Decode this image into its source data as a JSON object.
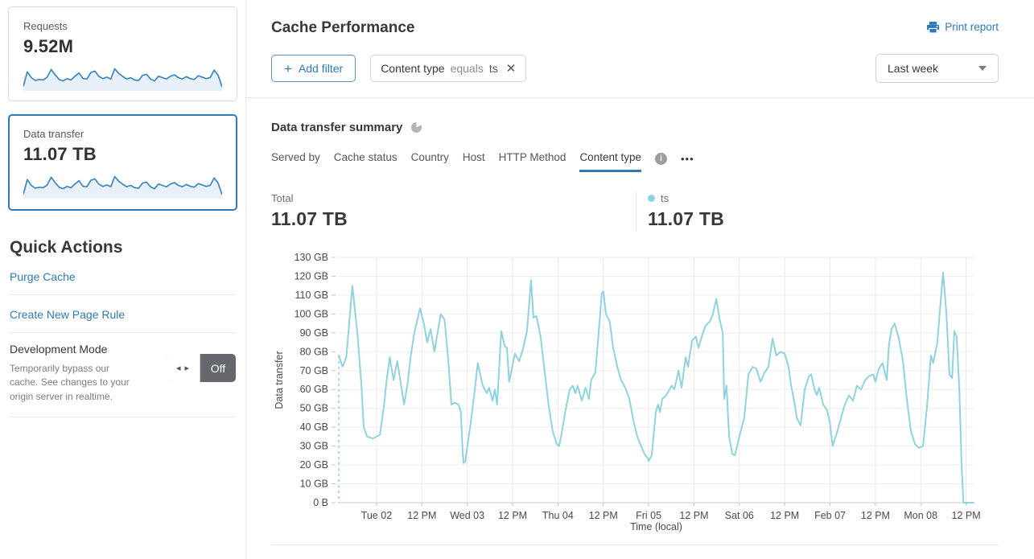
{
  "colors": {
    "accent_blue": "#2c7bb8",
    "selected_card_border": "#2f7bbf",
    "chart_line": "#8ed3df",
    "sparkline_stroke": "#3e87c2",
    "sparkline_fill": "#e8f1f9",
    "toggle_off_bg": "#65696e"
  },
  "icons": {
    "close_glyph": "✕",
    "plus_glyph": "+",
    "more_glyph": "•••",
    "toggle_arrows_glyph": "◂ ▸",
    "info_glyph": "i"
  },
  "sidebar": {
    "cards": [
      {
        "label": "Requests",
        "value": "9.52M",
        "sparkline": [
          12,
          75,
          50,
          38,
          42,
          40,
          52,
          85,
          62,
          42,
          36,
          46,
          40,
          56,
          70,
          46,
          44,
          72,
          78,
          55,
          46,
          52,
          44,
          88,
          68,
          55,
          44,
          50,
          40,
          38,
          60,
          64,
          44,
          36,
          56,
          50,
          44,
          56,
          62,
          50,
          44,
          54,
          46,
          42,
          58,
          52,
          46,
          50,
          82,
          60,
          10
        ]
      },
      {
        "label": "Data transfer",
        "value": "11.07 TB",
        "selected": true,
        "sparkline": [
          12,
          75,
          50,
          38,
          42,
          40,
          52,
          85,
          62,
          42,
          36,
          46,
          40,
          56,
          70,
          46,
          44,
          72,
          78,
          55,
          46,
          52,
          44,
          88,
          68,
          55,
          44,
          50,
          40,
          38,
          60,
          64,
          44,
          36,
          56,
          50,
          44,
          56,
          62,
          50,
          44,
          54,
          46,
          42,
          58,
          52,
          46,
          50,
          82,
          60,
          10
        ]
      }
    ],
    "quick_actions": {
      "title": "Quick Actions",
      "links": [
        "Purge Cache",
        "Create New Page Rule"
      ],
      "dev_mode": {
        "title": "Development Mode",
        "description": "Temporarily bypass our cache. See changes to your origin server in realtime.",
        "toggle_state": "Off"
      }
    }
  },
  "header": {
    "title": "Cache Performance",
    "print_label": "Print report",
    "add_filter_label": "Add filter",
    "filter_chip": {
      "field": "Content type",
      "operator": "equals",
      "value": "ts"
    },
    "time_range": "Last week"
  },
  "summary": {
    "title": "Data transfer summary",
    "tabs": [
      {
        "label": "Served by"
      },
      {
        "label": "Cache status"
      },
      {
        "label": "Country"
      },
      {
        "label": "Host"
      },
      {
        "label": "HTTP Method"
      },
      {
        "label": "Content type",
        "active": true
      }
    ],
    "total_label": "Total",
    "total_value": "11.07 TB",
    "series_label": "ts",
    "series_value": "11.07 TB"
  },
  "chart_data": {
    "type": "line",
    "title": "Data transfer summary",
    "xlabel": "Time (local)",
    "ylabel": "Data transfer",
    "xlim": [
      0,
      168
    ],
    "ylim": [
      0,
      130
    ],
    "grid": true,
    "legend_position": "top-right",
    "y_ticks": [
      {
        "value": 0,
        "label": "0 B"
      },
      {
        "value": 10,
        "label": "10 GB"
      },
      {
        "value": 20,
        "label": "20 GB"
      },
      {
        "value": 30,
        "label": "30 GB"
      },
      {
        "value": 40,
        "label": "40 GB"
      },
      {
        "value": 50,
        "label": "50 GB"
      },
      {
        "value": 60,
        "label": "60 GB"
      },
      {
        "value": 70,
        "label": "70 GB"
      },
      {
        "value": 80,
        "label": "80 GB"
      },
      {
        "value": 90,
        "label": "90 GB"
      },
      {
        "value": 100,
        "label": "100 GB"
      },
      {
        "value": 110,
        "label": "110 GB"
      },
      {
        "value": 120,
        "label": "120 GB"
      },
      {
        "value": 130,
        "label": "130 GB"
      }
    ],
    "x_ticks": [
      {
        "t": 10,
        "label": "Tue 02"
      },
      {
        "t": 22,
        "label": "12 PM"
      },
      {
        "t": 34,
        "label": "Wed 03"
      },
      {
        "t": 46,
        "label": "12 PM"
      },
      {
        "t": 58,
        "label": "Thu 04"
      },
      {
        "t": 70,
        "label": "12 PM"
      },
      {
        "t": 82,
        "label": "Fri 05"
      },
      {
        "t": 94,
        "label": "12 PM"
      },
      {
        "t": 106,
        "label": "Sat 06"
      },
      {
        "t": 118,
        "label": "12 PM"
      },
      {
        "t": 130,
        "label": "Feb 07"
      },
      {
        "t": 142,
        "label": "12 PM"
      },
      {
        "t": 154,
        "label": "Mon 08"
      },
      {
        "t": 166,
        "label": "12 PM"
      }
    ],
    "series": [
      {
        "name": "ts",
        "color": "#8ed3df",
        "unit": "GB",
        "start_boundary_dashed": true,
        "points": [
          [
            0,
            78
          ],
          [
            1,
            72
          ],
          [
            2,
            77
          ],
          [
            3.6,
            115
          ],
          [
            5,
            88
          ],
          [
            6,
            62
          ],
          [
            6.6,
            40
          ],
          [
            7.5,
            35
          ],
          [
            9,
            34
          ],
          [
            10.9,
            36
          ],
          [
            12,
            52
          ],
          [
            12.6,
            64
          ],
          [
            13.5,
            77
          ],
          [
            14.5,
            65
          ],
          [
            15.5,
            75
          ],
          [
            16.5,
            62
          ],
          [
            17.3,
            52
          ],
          [
            18.2,
            63
          ],
          [
            19,
            77
          ],
          [
            20,
            90
          ],
          [
            21.5,
            103
          ],
          [
            22.5,
            95
          ],
          [
            23.4,
            85
          ],
          [
            24.3,
            92
          ],
          [
            25.3,
            80
          ],
          [
            27,
            100
          ],
          [
            28,
            97
          ],
          [
            29,
            75
          ],
          [
            29.8,
            52
          ],
          [
            30.6,
            53
          ],
          [
            31.7,
            52
          ],
          [
            32.3,
            48
          ],
          [
            32.7,
            30
          ],
          [
            33,
            21
          ],
          [
            33.5,
            22
          ],
          [
            33.9,
            28
          ],
          [
            34.9,
            42
          ],
          [
            36,
            60
          ],
          [
            36.8,
            74
          ],
          [
            38.1,
            62
          ],
          [
            39.2,
            58
          ],
          [
            39.8,
            61
          ],
          [
            40.7,
            54
          ],
          [
            41.3,
            60
          ],
          [
            41.9,
            52
          ],
          [
            43,
            91
          ],
          [
            43.9,
            83
          ],
          [
            44.5,
            82
          ],
          [
            45.1,
            64
          ],
          [
            46,
            73
          ],
          [
            46.6,
            79
          ],
          [
            47.7,
            75
          ],
          [
            48.7,
            81
          ],
          [
            49.8,
            91
          ],
          [
            50.9,
            118
          ],
          [
            51.5,
            98
          ],
          [
            52.3,
            99
          ],
          [
            53.4,
            88
          ],
          [
            54.5,
            69
          ],
          [
            55.5,
            52
          ],
          [
            56.6,
            38
          ],
          [
            57.7,
            31
          ],
          [
            58.3,
            30
          ],
          [
            59,
            37
          ],
          [
            60,
            49
          ],
          [
            61.1,
            60
          ],
          [
            61.9,
            62
          ],
          [
            62.6,
            58
          ],
          [
            63.2,
            62
          ],
          [
            64.3,
            54
          ],
          [
            65.3,
            61
          ],
          [
            66.2,
            55
          ],
          [
            66.8,
            65
          ],
          [
            67.9,
            69
          ],
          [
            69,
            96
          ],
          [
            69.6,
            111
          ],
          [
            70,
            112
          ],
          [
            70.7,
            100
          ],
          [
            71.7,
            96
          ],
          [
            72.6,
            82
          ],
          [
            73.7,
            72
          ],
          [
            74.7,
            65
          ],
          [
            75.8,
            61
          ],
          [
            76.9,
            55
          ],
          [
            77.9,
            44
          ],
          [
            79,
            35
          ],
          [
            80,
            30
          ],
          [
            81.1,
            25
          ],
          [
            81.7,
            24
          ],
          [
            82,
            22
          ],
          [
            82.8,
            25
          ],
          [
            83.9,
            48
          ],
          [
            84.5,
            52
          ],
          [
            85,
            48
          ],
          [
            85.6,
            55
          ],
          [
            86.7,
            57
          ],
          [
            87.5,
            60
          ],
          [
            88.1,
            62
          ],
          [
            88.8,
            60
          ],
          [
            89.9,
            70
          ],
          [
            90.7,
            61
          ],
          [
            91.8,
            77
          ],
          [
            92.4,
            72
          ],
          [
            93.5,
            86
          ],
          [
            94.5,
            88
          ],
          [
            95.2,
            82
          ],
          [
            96.2,
            89
          ],
          [
            97.1,
            94
          ],
          [
            98.2,
            96
          ],
          [
            99,
            100
          ],
          [
            99.9,
            108
          ],
          [
            100.7,
            98
          ],
          [
            101.6,
            90
          ],
          [
            102,
            55
          ],
          [
            102.6,
            62
          ],
          [
            103.3,
            35
          ],
          [
            104.1,
            26
          ],
          [
            104.8,
            25
          ],
          [
            106,
            35
          ],
          [
            107.3,
            45
          ],
          [
            108.4,
            68
          ],
          [
            109.5,
            72
          ],
          [
            110.5,
            71
          ],
          [
            111.6,
            64
          ],
          [
            112.7,
            69
          ],
          [
            113.7,
            72
          ],
          [
            114.8,
            87
          ],
          [
            115.8,
            78
          ],
          [
            116.9,
            80
          ],
          [
            118,
            79
          ],
          [
            119,
            72
          ],
          [
            119.7,
            62
          ],
          [
            120.5,
            54
          ],
          [
            121.2,
            45
          ],
          [
            122.2,
            41
          ],
          [
            123.3,
            60
          ],
          [
            124.4,
            67
          ],
          [
            125,
            68
          ],
          [
            125.9,
            60
          ],
          [
            126.5,
            57
          ],
          [
            127.1,
            61
          ],
          [
            128.2,
            52
          ],
          [
            129.2,
            49
          ],
          [
            129.9,
            43
          ],
          [
            130.7,
            30
          ],
          [
            131.8,
            37
          ],
          [
            132.9,
            45
          ],
          [
            133.9,
            52
          ],
          [
            135,
            57
          ],
          [
            136.1,
            54
          ],
          [
            137.1,
            62
          ],
          [
            138.2,
            60
          ],
          [
            139.3,
            65
          ],
          [
            140.3,
            67
          ],
          [
            141.4,
            68
          ],
          [
            142,
            64
          ],
          [
            142.9,
            71
          ],
          [
            143.9,
            74
          ],
          [
            145,
            65
          ],
          [
            145.6,
            84
          ],
          [
            146.3,
            92
          ],
          [
            147.1,
            95
          ],
          [
            148.2,
            87
          ],
          [
            149.3,
            75
          ],
          [
            150.3,
            55
          ],
          [
            151.4,
            38
          ],
          [
            152.5,
            31
          ],
          [
            153.5,
            29
          ],
          [
            154.6,
            30
          ],
          [
            155.6,
            50
          ],
          [
            156.7,
            78
          ],
          [
            157.3,
            74
          ],
          [
            158.4,
            85
          ],
          [
            159,
            100
          ],
          [
            159.9,
            122
          ],
          [
            160.8,
            100
          ],
          [
            161.6,
            68
          ],
          [
            162.3,
            66
          ],
          [
            162.9,
            91
          ],
          [
            163.5,
            88
          ],
          [
            164.2,
            60
          ],
          [
            164.8,
            20
          ],
          [
            165.3,
            0
          ],
          [
            168,
            0
          ]
        ]
      }
    ]
  }
}
